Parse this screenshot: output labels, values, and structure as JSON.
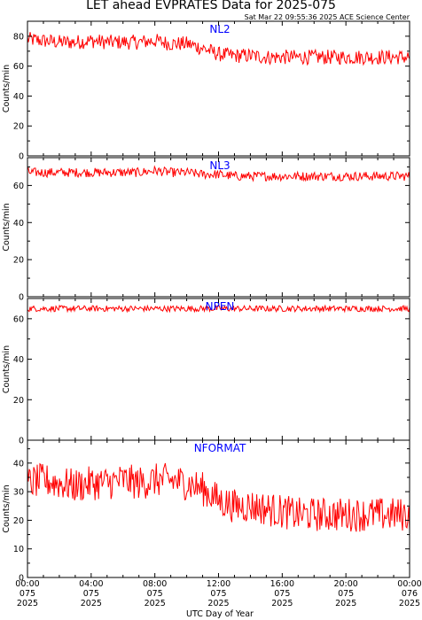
{
  "header": {
    "title": "LET ahead EVPRATES Data for 2025-075",
    "timestamp": "Sat Mar 22 09:55:36 2025 ACE Science Center"
  },
  "xaxis": {
    "label": "UTC Day of Year",
    "ticks": [
      {
        "time": "00:00",
        "day": "075",
        "year": "2025"
      },
      {
        "time": "04:00",
        "day": "075",
        "year": "2025"
      },
      {
        "time": "08:00",
        "day": "075",
        "year": "2025"
      },
      {
        "time": "12:00",
        "day": "075",
        "year": "2025"
      },
      {
        "time": "16:00",
        "day": "075",
        "year": "2025"
      },
      {
        "time": "20:00",
        "day": "075",
        "year": "2025"
      },
      {
        "time": "00:00",
        "day": "076",
        "year": "2025"
      }
    ]
  },
  "colors": {
    "series": "#ff0000",
    "label": "#0000ff",
    "axes": "#000000"
  },
  "chart_data": [
    {
      "type": "line",
      "name": "NL2",
      "ylabel": "Counts/min",
      "ylim": [
        0,
        90
      ],
      "yticks": [
        0,
        20,
        40,
        60,
        80
      ],
      "x": [
        0,
        1,
        2,
        3,
        4,
        5,
        6,
        7,
        8,
        9,
        10,
        11,
        12,
        13,
        14,
        15,
        16,
        17,
        18,
        19,
        20,
        21,
        22,
        23,
        24
      ],
      "values": [
        78,
        77,
        76,
        76,
        77,
        76,
        76,
        76,
        77,
        75,
        75,
        72,
        68,
        67,
        67,
        66,
        66,
        66,
        66,
        66,
        66,
        66,
        66,
        66,
        66
      ],
      "jitter": 5
    },
    {
      "type": "line",
      "name": "NL3",
      "ylabel": "Counts/min",
      "ylim": [
        0,
        75
      ],
      "yticks": [
        0,
        20,
        40,
        60
      ],
      "x": [
        0,
        1,
        2,
        3,
        4,
        5,
        6,
        7,
        8,
        9,
        10,
        11,
        12,
        13,
        14,
        15,
        16,
        17,
        18,
        19,
        20,
        21,
        22,
        23,
        24
      ],
      "values": [
        67,
        67,
        67,
        67,
        67,
        67,
        67,
        67,
        68,
        67,
        67,
        66,
        66,
        65,
        65,
        65,
        65,
        65,
        65,
        65,
        65,
        65,
        65,
        65,
        65
      ],
      "jitter": 2.5
    },
    {
      "type": "line",
      "name": "NPEN",
      "ylabel": "Counts/min",
      "ylim": [
        0,
        70
      ],
      "yticks": [
        0,
        20,
        40,
        60
      ],
      "x": [
        0,
        1,
        2,
        3,
        4,
        5,
        6,
        7,
        8,
        9,
        10,
        11,
        12,
        13,
        14,
        15,
        16,
        17,
        18,
        19,
        20,
        21,
        22,
        23,
        24
      ],
      "values": [
        65,
        65,
        65,
        65,
        65,
        65,
        65,
        65,
        65,
        65,
        65,
        65,
        65,
        65,
        65,
        65,
        65,
        65,
        65,
        65,
        65,
        65,
        65,
        65,
        65
      ],
      "jitter": 1.5
    },
    {
      "type": "line",
      "name": "NFORMAT",
      "ylabel": "Counts/min",
      "ylim": [
        0,
        48
      ],
      "yticks": [
        0,
        10,
        20,
        30,
        40
      ],
      "x": [
        0,
        1,
        2,
        3,
        4,
        5,
        6,
        7,
        8,
        9,
        10,
        11,
        12,
        13,
        14,
        15,
        16,
        17,
        18,
        19,
        20,
        21,
        22,
        23,
        24
      ],
      "values": [
        33,
        34,
        33,
        32,
        33,
        33,
        34,
        33,
        34,
        34,
        33,
        31,
        27,
        25,
        25,
        24,
        23,
        22,
        22,
        22,
        22,
        22,
        22,
        22,
        22
      ],
      "jitter": 6
    }
  ]
}
